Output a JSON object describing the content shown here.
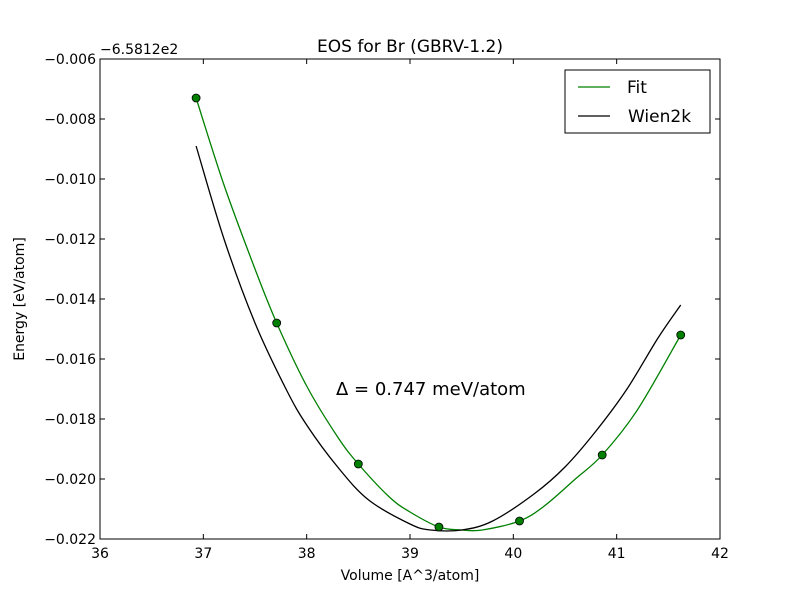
{
  "chart_data": {
    "type": "line",
    "title": "EOS for Br (GBRV-1.2)",
    "xlabel": "Volume [A^3/atom]",
    "ylabel": "Energy [eV/atom]",
    "offset_label": "−6.5812e2",
    "xlim": [
      36,
      42
    ],
    "ylim": [
      -0.022,
      -0.006
    ],
    "x_ticks": [
      36,
      37,
      38,
      39,
      40,
      41,
      42
    ],
    "x_tick_labels": [
      "36",
      "37",
      "38",
      "39",
      "40",
      "41",
      "42"
    ],
    "y_ticks": [
      -0.022,
      -0.02,
      -0.018,
      -0.016,
      -0.014,
      -0.012,
      -0.01,
      -0.008,
      -0.006
    ],
    "y_tick_labels": [
      "−0.022",
      "−0.020",
      "−0.018",
      "−0.016",
      "−0.014",
      "−0.012",
      "−0.010",
      "−0.008",
      "−0.006"
    ],
    "grid": false,
    "legend_position": "top-right",
    "annotation": "Δ = 0.747 meV/atom",
    "series": [
      {
        "name": "Fit",
        "color": "#008000",
        "kind": "curve",
        "x": [
          36.93,
          37.2,
          37.5,
          37.71,
          38.0,
          38.3,
          38.5,
          38.8,
          39.0,
          39.28,
          39.5,
          39.7,
          40.06,
          40.3,
          40.6,
          40.86,
          41.2,
          41.62
        ],
        "y": [
          -0.0073,
          -0.0102,
          -0.013,
          -0.0148,
          -0.0169,
          -0.0186,
          -0.0195,
          -0.0206,
          -0.0211,
          -0.0216,
          -0.0217,
          -0.0217,
          -0.0214,
          -0.0209,
          -0.02,
          -0.0192,
          -0.0177,
          -0.0152
        ]
      },
      {
        "name": "Wien2k",
        "color": "#000000",
        "kind": "curve",
        "x": [
          36.93,
          37.2,
          37.5,
          37.8,
          38.0,
          38.3,
          38.6,
          39.0,
          39.2,
          39.5,
          39.8,
          40.2,
          40.5,
          40.8,
          41.1,
          41.4,
          41.62
        ],
        "y": [
          -0.0089,
          -0.012,
          -0.0148,
          -0.017,
          -0.0182,
          -0.0196,
          -0.0207,
          -0.0215,
          -0.0217,
          -0.0217,
          -0.0214,
          -0.0205,
          -0.0196,
          -0.0184,
          -0.017,
          -0.0153,
          -0.0142
        ]
      },
      {
        "name": "",
        "color": "#008000",
        "kind": "points",
        "x": [
          36.93,
          37.71,
          38.5,
          39.28,
          40.06,
          40.86,
          41.62
        ],
        "y": [
          -0.0073,
          -0.0148,
          -0.0195,
          -0.0216,
          -0.0214,
          -0.0192,
          -0.0152
        ]
      }
    ]
  }
}
